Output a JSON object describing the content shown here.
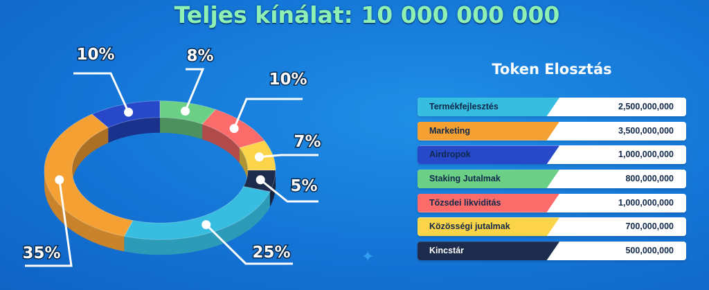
{
  "header": {
    "title": "Teljes kínálat: 10 000 000 000"
  },
  "panel": {
    "title": "Token Elosztás"
  },
  "chart_data": {
    "type": "pie",
    "title": "Teljes kínálat: 10 000 000 000",
    "legend_title": "Token Elosztás",
    "slices": [
      {
        "name": "Termékfejlesztés",
        "value": 2500000000,
        "value_label": "2,500,000,000",
        "percent": 25,
        "percent_label": "25%",
        "color": "#36bde0"
      },
      {
        "name": "Marketing",
        "value": 3500000000,
        "value_label": "3,500,000,000",
        "percent": 35,
        "percent_label": "35%",
        "color": "#f5a033"
      },
      {
        "name": "Airdropok",
        "value": 1000000000,
        "value_label": "1,000,000,000",
        "percent": 10,
        "percent_label": "10%",
        "color": "#2748c9"
      },
      {
        "name": "Staking Jutalmak",
        "value": 800000000,
        "value_label": "800,000,000",
        "percent": 8,
        "percent_label": "8%",
        "color": "#6ccf86"
      },
      {
        "name": "Tőzsdei likviditás",
        "value": 1000000000,
        "value_label": "1,000,000,000",
        "percent": 10,
        "percent_label": "10%",
        "color": "#fb6b6a"
      },
      {
        "name": "Közösségi jutalmak",
        "value": 700000000,
        "value_label": "700,000,000",
        "percent": 7,
        "percent_label": "7%",
        "color": "#fcd44a"
      },
      {
        "name": "Kincstár",
        "value": 500000000,
        "value_label": "500,000,000",
        "percent": 5,
        "percent_label": "5%",
        "color": "#1d2c4d"
      }
    ]
  }
}
